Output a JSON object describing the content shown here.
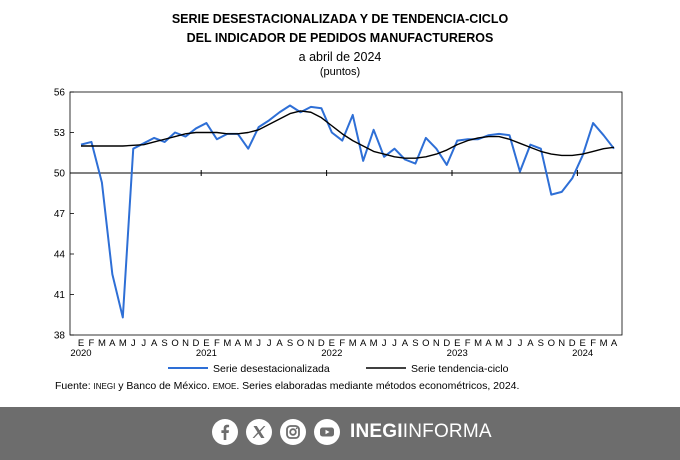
{
  "header": {
    "line1": "SERIE DESESTACIONALIZADA Y DE TENDENCIA-CICLO",
    "line2": "DEL INDICADOR DE PEDIDOS MANUFACTUREROS",
    "line3": "a abril de 2024",
    "line4": "(puntos)"
  },
  "chart_data": {
    "type": "line",
    "title": "SERIE DESESTACIONALIZADA Y DE TENDENCIA-CICLO DEL INDICADOR DE PEDIDOS MANUFACTUREROS",
    "subtitle": "a abril de 2024",
    "ylabel": "(puntos)",
    "xlabel": "",
    "ylim": [
      38,
      56
    ],
    "yticks": [
      38,
      41,
      44,
      47,
      50,
      53,
      56
    ],
    "reference_line": 50,
    "grid": false,
    "legend_position": "bottom",
    "month_labels": [
      "E",
      "F",
      "M",
      "A",
      "M",
      "J",
      "J",
      "A",
      "S",
      "O",
      "N",
      "D",
      "E",
      "F",
      "M",
      "A",
      "M",
      "J",
      "J",
      "A",
      "S",
      "O",
      "N",
      "D",
      "E",
      "F",
      "M",
      "A",
      "M",
      "J",
      "J",
      "A",
      "S",
      "O",
      "N",
      "D",
      "E",
      "F",
      "M",
      "A",
      "M",
      "J",
      "J",
      "A",
      "S",
      "O",
      "N",
      "D",
      "E",
      "F",
      "M",
      "A"
    ],
    "year_labels": [
      {
        "label": "2020",
        "index": 0
      },
      {
        "label": "2021",
        "index": 12
      },
      {
        "label": "2022",
        "index": 24
      },
      {
        "label": "2023",
        "index": 36
      },
      {
        "label": "2024",
        "index": 48
      }
    ],
    "series": [
      {
        "name": "Serie desestacionalizada",
        "color": "#2e6fd6",
        "values": [
          52.1,
          52.3,
          49.3,
          42.5,
          39.3,
          51.8,
          52.2,
          52.6,
          52.3,
          53.0,
          52.7,
          53.3,
          53.7,
          52.5,
          52.9,
          52.9,
          51.8,
          53.4,
          53.9,
          54.5,
          55.0,
          54.5,
          54.9,
          54.8,
          53.0,
          52.4,
          54.3,
          50.9,
          53.2,
          51.2,
          51.8,
          51.0,
          50.7,
          52.6,
          51.8,
          50.6,
          52.4,
          52.5,
          52.5,
          52.8,
          52.9,
          52.8,
          50.1,
          52.1,
          51.8,
          48.4,
          48.6,
          49.6,
          51.3,
          53.7,
          52.8,
          51.8
        ]
      },
      {
        "name": "Serie tendencia-ciclo",
        "color": "#000000",
        "values": [
          52.0,
          52.0,
          52.0,
          52.0,
          52.0,
          52.05,
          52.1,
          52.3,
          52.5,
          52.7,
          52.9,
          53.0,
          53.0,
          53.0,
          52.9,
          52.9,
          53.0,
          53.2,
          53.6,
          54.0,
          54.4,
          54.6,
          54.5,
          54.1,
          53.5,
          52.9,
          52.4,
          52.0,
          51.6,
          51.4,
          51.2,
          51.1,
          51.1,
          51.2,
          51.4,
          51.7,
          52.1,
          52.4,
          52.6,
          52.7,
          52.7,
          52.5,
          52.2,
          51.9,
          51.6,
          51.4,
          51.3,
          51.3,
          51.4,
          51.6,
          51.8,
          51.9
        ]
      }
    ]
  },
  "source": {
    "prefix": "Fuente: ",
    "inegi": "INEGI",
    "middle": " y Banco de México. ",
    "emoe": "EMOE",
    "suffix": ". Series elaboradas mediante métodos econométricos, 2024."
  },
  "footer": {
    "icons": [
      "facebook-icon",
      "x-icon",
      "instagram-icon",
      "youtube-icon"
    ],
    "brand_bold": "INEGI",
    "brand_light": "INFORMA"
  }
}
